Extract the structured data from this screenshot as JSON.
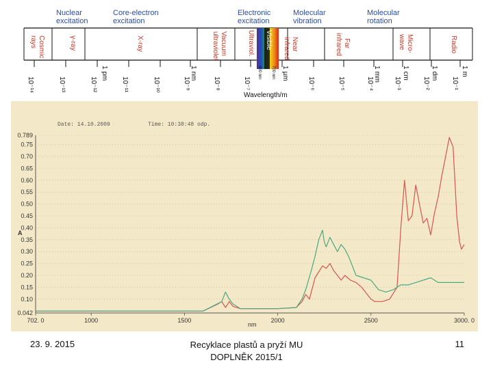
{
  "spectrum": {
    "categories": [
      {
        "id": "nuclear",
        "lines": [
          "Nuclear",
          "excitation"
        ]
      },
      {
        "id": "core",
        "lines": [
          "Core-electron",
          "excitation"
        ]
      },
      {
        "id": "electronic",
        "lines": [
          "Electronic",
          "excitation"
        ]
      },
      {
        "id": "molvib",
        "lines": [
          "Molecular",
          "vibration"
        ]
      },
      {
        "id": "molrot",
        "lines": [
          "Molecular",
          "rotation"
        ]
      }
    ],
    "bands": [
      {
        "id": "cosmic",
        "lines": [
          "Cosmic",
          "rays"
        ]
      },
      {
        "id": "gamma",
        "lines": [
          "γ-ray"
        ]
      },
      {
        "id": "xray",
        "lines": [
          "X-ray"
        ]
      },
      {
        "id": "vacuum-uv",
        "lines": [
          "Vacuum",
          "ultraviolet"
        ]
      },
      {
        "id": "ultraviolet",
        "lines": [
          "Ultraviol."
        ]
      },
      {
        "id": "visible",
        "lines": [
          "Visible"
        ]
      },
      {
        "id": "near-ir",
        "lines": [
          "Near",
          "infrared"
        ]
      },
      {
        "id": "far-ir",
        "lines": [
          "Far",
          "infrared"
        ]
      },
      {
        "id": "microwave",
        "lines": [
          "Micro-",
          "wave"
        ]
      },
      {
        "id": "radio",
        "lines": [
          "Radio"
        ]
      }
    ],
    "visible_limits": [
      "400 nm",
      "700 nm"
    ],
    "unit_marks": [
      "1 pm",
      "1 nm",
      "1 µm",
      "1 mm",
      "1 cm",
      "1 dm",
      "1 m"
    ],
    "powers": [
      "10⁻¹⁴",
      "10⁻¹³",
      "10⁻¹²",
      "10⁻¹¹",
      "10⁻¹⁰",
      "10⁻⁹",
      "10⁻⁸",
      "10⁻⁷",
      "10⁻⁶",
      "10⁻⁵",
      "10⁻⁴",
      "10⁻³",
      "10⁻²",
      "10⁻¹",
      "1"
    ],
    "axis_label": "Wavelength/m"
  },
  "chart_data": {
    "type": "line",
    "header_left": "Date: 14.10.2009",
    "header_right": "Time: 10:38:48 odp.",
    "ylabel": "A",
    "xlabel": "nm",
    "ylim": [
      0.042,
      0.789
    ],
    "xlim": [
      702,
      3000
    ],
    "y_ticks": [
      "0.789",
      "0.75",
      "0.70",
      "0.65",
      "0.60",
      "0.55",
      "0.50",
      "0.45",
      "0.40",
      "0.35",
      "0.30",
      "0.25",
      "0.20",
      "0.15",
      "0.10",
      "0.042"
    ],
    "y_tick_values": [
      0.789,
      0.75,
      0.7,
      0.65,
      0.6,
      0.55,
      0.5,
      0.45,
      0.4,
      0.35,
      0.3,
      0.25,
      0.2,
      0.15,
      0.1,
      0.042
    ],
    "x_ticks": [
      "702. 0",
      "1000",
      "1500",
      "2000",
      "2500",
      "3000. 0"
    ],
    "x_tick_values": [
      702,
      1000,
      1500,
      2000,
      2500,
      3000
    ],
    "series": [
      {
        "color": "#d9534f",
        "points": [
          [
            702,
            0.05
          ],
          [
            900,
            0.05
          ],
          [
            1100,
            0.05
          ],
          [
            1300,
            0.05
          ],
          [
            1600,
            0.05
          ],
          [
            1680,
            0.08
          ],
          [
            1700,
            0.09
          ],
          [
            1720,
            0.065
          ],
          [
            1740,
            0.09
          ],
          [
            1760,
            0.07
          ],
          [
            1800,
            0.06
          ],
          [
            1900,
            0.06
          ],
          [
            2000,
            0.06
          ],
          [
            2100,
            0.065
          ],
          [
            2130,
            0.09
          ],
          [
            2150,
            0.12
          ],
          [
            2170,
            0.1
          ],
          [
            2200,
            0.19
          ],
          [
            2240,
            0.24
          ],
          [
            2260,
            0.23
          ],
          [
            2280,
            0.25
          ],
          [
            2300,
            0.22
          ],
          [
            2320,
            0.2
          ],
          [
            2340,
            0.18
          ],
          [
            2360,
            0.2
          ],
          [
            2390,
            0.18
          ],
          [
            2420,
            0.17
          ],
          [
            2450,
            0.15
          ],
          [
            2480,
            0.12
          ],
          [
            2500,
            0.1
          ],
          [
            2520,
            0.09
          ],
          [
            2560,
            0.09
          ],
          [
            2600,
            0.1
          ],
          [
            2640,
            0.15
          ],
          [
            2660,
            0.4
          ],
          [
            2680,
            0.6
          ],
          [
            2700,
            0.43
          ],
          [
            2720,
            0.45
          ],
          [
            2740,
            0.58
          ],
          [
            2760,
            0.5
          ],
          [
            2780,
            0.42
          ],
          [
            2800,
            0.44
          ],
          [
            2820,
            0.37
          ],
          [
            2840,
            0.46
          ],
          [
            2860,
            0.53
          ],
          [
            2880,
            0.62
          ],
          [
            2900,
            0.7
          ],
          [
            2920,
            0.78
          ],
          [
            2940,
            0.74
          ],
          [
            2960,
            0.45
          ],
          [
            2975,
            0.34
          ],
          [
            2985,
            0.31
          ],
          [
            3000,
            0.33
          ]
        ]
      },
      {
        "color": "#4aa883",
        "points": [
          [
            702,
            0.05
          ],
          [
            900,
            0.05
          ],
          [
            1100,
            0.05
          ],
          [
            1300,
            0.05
          ],
          [
            1600,
            0.05
          ],
          [
            1700,
            0.09
          ],
          [
            1720,
            0.13
          ],
          [
            1740,
            0.1
          ],
          [
            1760,
            0.08
          ],
          [
            1800,
            0.06
          ],
          [
            1900,
            0.06
          ],
          [
            2000,
            0.06
          ],
          [
            2100,
            0.065
          ],
          [
            2130,
            0.1
          ],
          [
            2150,
            0.14
          ],
          [
            2180,
            0.22
          ],
          [
            2200,
            0.28
          ],
          [
            2220,
            0.35
          ],
          [
            2240,
            0.39
          ],
          [
            2250,
            0.34
          ],
          [
            2260,
            0.32
          ],
          [
            2280,
            0.36
          ],
          [
            2300,
            0.33
          ],
          [
            2320,
            0.3
          ],
          [
            2340,
            0.33
          ],
          [
            2360,
            0.31
          ],
          [
            2380,
            0.28
          ],
          [
            2400,
            0.24
          ],
          [
            2420,
            0.2
          ],
          [
            2460,
            0.19
          ],
          [
            2500,
            0.18
          ],
          [
            2540,
            0.14
          ],
          [
            2580,
            0.13
          ],
          [
            2620,
            0.14
          ],
          [
            2660,
            0.16
          ],
          [
            2700,
            0.16
          ],
          [
            2740,
            0.17
          ],
          [
            2780,
            0.18
          ],
          [
            2820,
            0.19
          ],
          [
            2860,
            0.17
          ],
          [
            2900,
            0.17
          ],
          [
            2940,
            0.17
          ],
          [
            2980,
            0.17
          ],
          [
            3000,
            0.17
          ]
        ]
      }
    ]
  },
  "footer": {
    "date": "23. 9. 2015",
    "center_line1": "Recyklace plastů a pryží MU",
    "center_line2": "DOPLNĚK 2015/1",
    "page": "11"
  }
}
